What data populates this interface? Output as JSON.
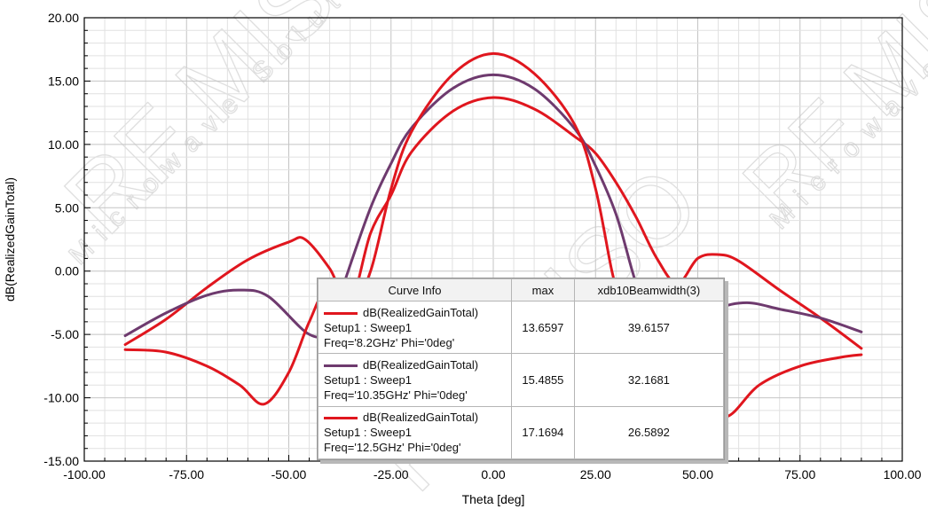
{
  "chart_data": {
    "type": "line",
    "xlabel": "Theta [deg]",
    "ylabel": "dB(RealizedGainTotal)",
    "xlim": [
      -100,
      100
    ],
    "ylim": [
      -15,
      20
    ],
    "x_ticks": [
      "-100.00",
      "-75.00",
      "-50.00",
      "-25.00",
      "0.00",
      "25.00",
      "50.00",
      "75.00",
      "100.00"
    ],
    "y_ticks": [
      "-15.00",
      "-10.00",
      "-5.00",
      "0.00",
      "5.00",
      "10.00",
      "15.00",
      "20.00"
    ],
    "grid": true,
    "series": [
      {
        "name": "dB(RealizedGainTotal)",
        "color": "#e0161e",
        "x": [
          -90,
          -80,
          -70,
          -60,
          -50,
          -46,
          -40,
          -35,
          -30,
          -25,
          -20,
          -10,
          0,
          10,
          20,
          25,
          30,
          35,
          40,
          45,
          50,
          55,
          60,
          70,
          80,
          90
        ],
        "y": [
          -5.8,
          -3.8,
          -1.3,
          0.9,
          2.3,
          2.5,
          0.2,
          -2.5,
          3.0,
          6.0,
          9.4,
          12.6,
          13.7,
          12.8,
          10.6,
          9.3,
          7.0,
          4.2,
          1.0,
          -1.0,
          1.0,
          1.3,
          0.8,
          -1.5,
          -3.7,
          -6.1
        ]
      },
      {
        "name": "dB(RealizedGainTotal)",
        "color": "#6e3a6e",
        "x": [
          -90,
          -80,
          -70,
          -62,
          -55,
          -45,
          -40,
          -36,
          -30,
          -25,
          -20,
          -10,
          0,
          10,
          20,
          25,
          30,
          34,
          36,
          40,
          45,
          50,
          55,
          62,
          70,
          80,
          90
        ],
        "y": [
          -5.1,
          -3.3,
          -1.9,
          -1.5,
          -2.0,
          -5.0,
          -4.5,
          -0.5,
          5.0,
          8.5,
          11.3,
          14.4,
          15.49,
          14.4,
          11.2,
          8.3,
          4.5,
          0.0,
          -2.0,
          -3.5,
          -5.0,
          -4.5,
          -3.0,
          -2.5,
          -3.0,
          -3.7,
          -4.8
        ]
      },
      {
        "name": "dB(RealizedGainTotal)",
        "color": "#e0161e",
        "x": [
          -90,
          -80,
          -70,
          -62,
          -56,
          -50,
          -45,
          -40,
          -35,
          -30,
          -25,
          -20,
          -10,
          0,
          10,
          20,
          25,
          29,
          31,
          35,
          40,
          45,
          50,
          57,
          65,
          75,
          85,
          90
        ],
        "y": [
          -6.2,
          -6.4,
          -7.5,
          -9.0,
          -10.5,
          -8.0,
          -4.0,
          -1.0,
          -3.0,
          0.0,
          6.5,
          11.0,
          15.5,
          17.17,
          15.6,
          11.5,
          6.5,
          0.0,
          -2.0,
          -4.0,
          -7.0,
          -9.5,
          -10.2,
          -11.5,
          -9.0,
          -7.5,
          -6.8,
          -6.6
        ]
      }
    ]
  },
  "legend": {
    "header": {
      "curve": "Curve Info",
      "max": "max",
      "beamwidth": "xdb10Beamwidth(3)"
    },
    "rows": [
      {
        "title": "dB(RealizedGainTotal)",
        "setup": "Setup1 : Sweep1",
        "freq": "Freq='8.2GHz' Phi='0deg'",
        "max": "13.6597",
        "beamwidth": "39.6157",
        "color": "#e0161e"
      },
      {
        "title": "dB(RealizedGainTotal)",
        "setup": "Setup1 : Sweep1",
        "freq": "Freq='10.35GHz' Phi='0deg'",
        "max": "15.4855",
        "beamwidth": "32.1681",
        "color": "#6e3a6e"
      },
      {
        "title": "dB(RealizedGainTotal)",
        "setup": "Setup1 : Sweep1",
        "freq": "Freq='12.5GHz' Phi='0deg'",
        "max": "17.1694",
        "beamwidth": "26.5892",
        "color": "#e0161e"
      }
    ]
  },
  "watermark": {
    "brand": "RF MISO",
    "tagline": "Microwave Solution"
  }
}
